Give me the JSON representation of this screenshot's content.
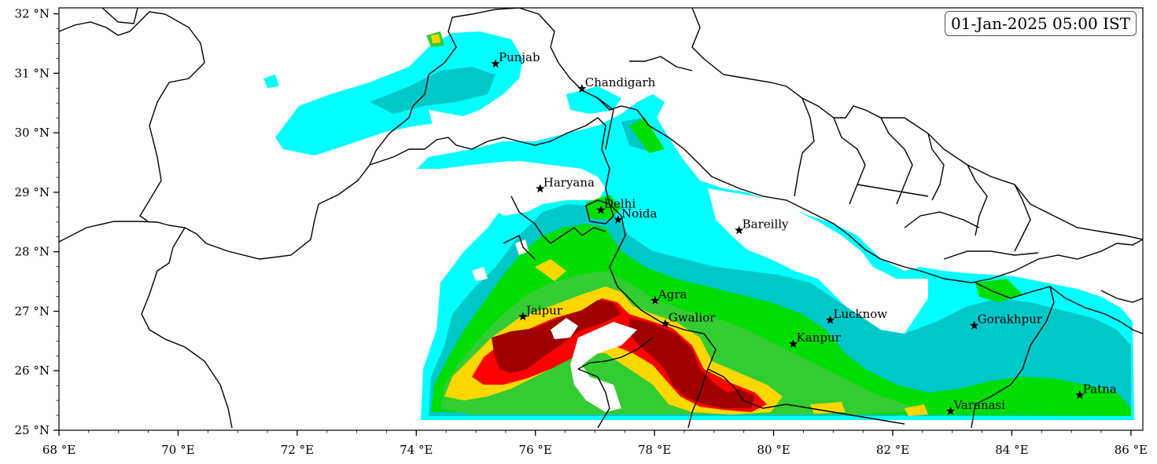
{
  "timestamp": "01-Jan-2025 05:00 IST",
  "axes": {
    "x_ticks": [
      {
        "lon": 68,
        "label": "68 °E"
      },
      {
        "lon": 70,
        "label": "70 °E"
      },
      {
        "lon": 72,
        "label": "72 °E"
      },
      {
        "lon": 74,
        "label": "74 °E"
      },
      {
        "lon": 76,
        "label": "76 °E"
      },
      {
        "lon": 78,
        "label": "78 °E"
      },
      {
        "lon": 80,
        "label": "80 °E"
      },
      {
        "lon": 82,
        "label": "82 °E"
      },
      {
        "lon": 84,
        "label": "84 °E"
      },
      {
        "lon": 86,
        "label": "86 °E"
      }
    ],
    "y_ticks": [
      {
        "lat": 25,
        "label": "25 °N"
      },
      {
        "lat": 26,
        "label": "26 °N"
      },
      {
        "lat": 27,
        "label": "27 °N"
      },
      {
        "lat": 28,
        "label": "28 °N"
      },
      {
        "lat": 29,
        "label": "29 °N"
      },
      {
        "lat": 30,
        "label": "30 °N"
      },
      {
        "lat": 31,
        "label": "31 °N"
      },
      {
        "lat": 32,
        "label": "32 °N"
      }
    ],
    "lon_range": [
      68,
      86.2
    ],
    "lat_range": [
      25,
      32.1
    ]
  },
  "cities": [
    {
      "name": "Punjab",
      "lon": 75.33,
      "lat": 31.16
    },
    {
      "name": "Chandigarh",
      "lon": 76.78,
      "lat": 30.74
    },
    {
      "name": "Haryana",
      "lon": 76.08,
      "lat": 29.06
    },
    {
      "name": "Delhi",
      "lon": 77.1,
      "lat": 28.7
    },
    {
      "name": "Noida",
      "lon": 77.39,
      "lat": 28.54
    },
    {
      "name": "Bareilly",
      "lon": 79.42,
      "lat": 28.36
    },
    {
      "name": "Agra",
      "lon": 78.01,
      "lat": 27.18
    },
    {
      "name": "Jaipur",
      "lon": 75.79,
      "lat": 26.91
    },
    {
      "name": "Gwalior",
      "lon": 78.18,
      "lat": 26.79
    },
    {
      "name": "Lucknow",
      "lon": 80.95,
      "lat": 26.85
    },
    {
      "name": "Kanpur",
      "lon": 80.33,
      "lat": 26.45
    },
    {
      "name": "Gorakhpur",
      "lon": 83.37,
      "lat": 26.76
    },
    {
      "name": "Patna",
      "lon": 85.14,
      "lat": 25.59
    },
    {
      "name": "Varanasi",
      "lon": 82.97,
      "lat": 25.32
    }
  ],
  "colors": {
    "level1": "#00ffff",
    "level2": "#00c8c8",
    "level3": "#00dd00",
    "level4": "#33cc33",
    "level5": "#ffd700",
    "level6": "#ff0000",
    "level7": "#a00000"
  }
}
